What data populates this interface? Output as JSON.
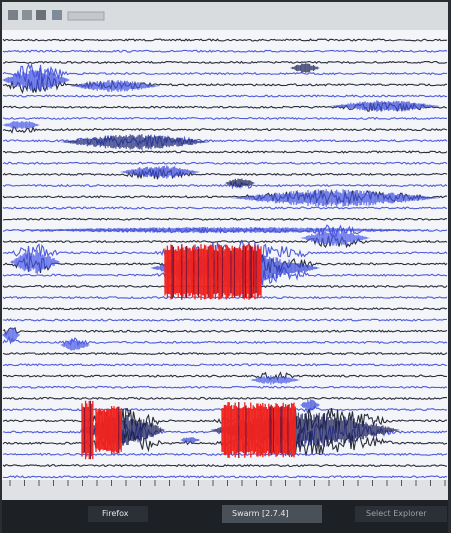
{
  "taskbar": {
    "items": [
      "Firefox",
      "Swarm [2.7.4]",
      "Select Explorer"
    ]
  }
}
